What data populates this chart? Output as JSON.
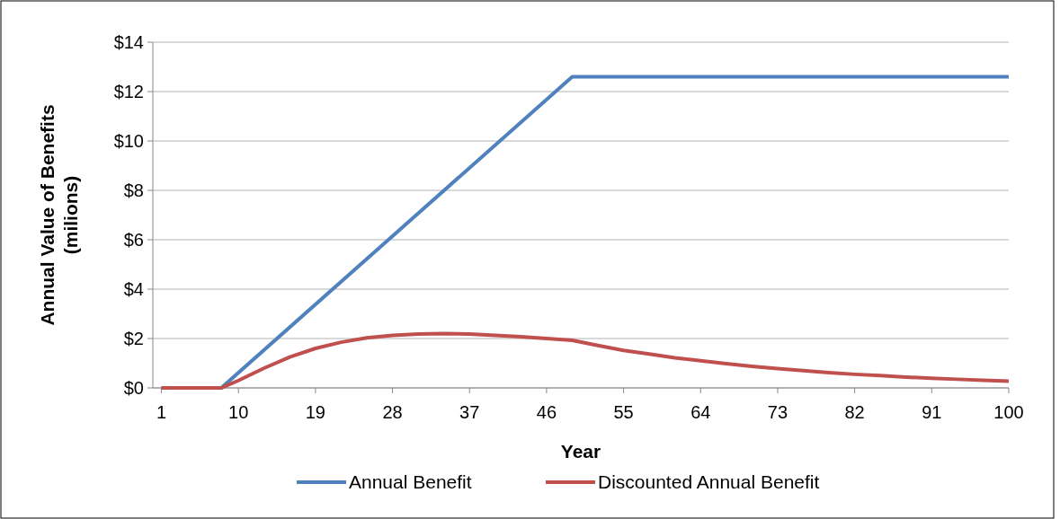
{
  "chart_data": {
    "type": "line",
    "xlabel": "Year",
    "ylabel": "Annual Value of Benefits\n(milions)",
    "xlim": [
      0,
      100
    ],
    "xticks": [
      1,
      10,
      19,
      28,
      37,
      46,
      55,
      64,
      73,
      82,
      91,
      100
    ],
    "ylim": [
      0,
      14
    ],
    "yticks": [
      {
        "value": 0,
        "label": "$0"
      },
      {
        "value": 2,
        "label": "$2"
      },
      {
        "value": 4,
        "label": "$4"
      },
      {
        "value": 6,
        "label": "$6"
      },
      {
        "value": 8,
        "label": "$8"
      },
      {
        "value": 10,
        "label": "$10"
      },
      {
        "value": 12,
        "label": "$12"
      },
      {
        "value": 14,
        "label": "$14"
      }
    ],
    "grid": "y",
    "legend": "bottom",
    "marker": "none",
    "line_style": "solid",
    "series": [
      {
        "name": "Annual Benefit",
        "color": "#4f81bd",
        "x": [
          1,
          8,
          49,
          100
        ],
        "values": [
          0,
          0,
          12.6,
          12.6
        ]
      },
      {
        "name": "Discounted Annual Benefit",
        "color": "#c0504d",
        "x": [
          1,
          8,
          10,
          13,
          16,
          19,
          22,
          25,
          28,
          31,
          34,
          37,
          40,
          43,
          46,
          49,
          52,
          55,
          58,
          61,
          64,
          67,
          70,
          73,
          76,
          79,
          82,
          85,
          88,
          91,
          94,
          97,
          100
        ],
        "values": [
          0,
          0,
          0.3,
          0.8,
          1.25,
          1.6,
          1.85,
          2.03,
          2.13,
          2.18,
          2.2,
          2.18,
          2.13,
          2.07,
          2.0,
          1.93,
          1.72,
          1.52,
          1.37,
          1.22,
          1.1,
          0.98,
          0.87,
          0.78,
          0.7,
          0.62,
          0.55,
          0.5,
          0.44,
          0.39,
          0.35,
          0.31,
          0.27
        ]
      }
    ]
  }
}
